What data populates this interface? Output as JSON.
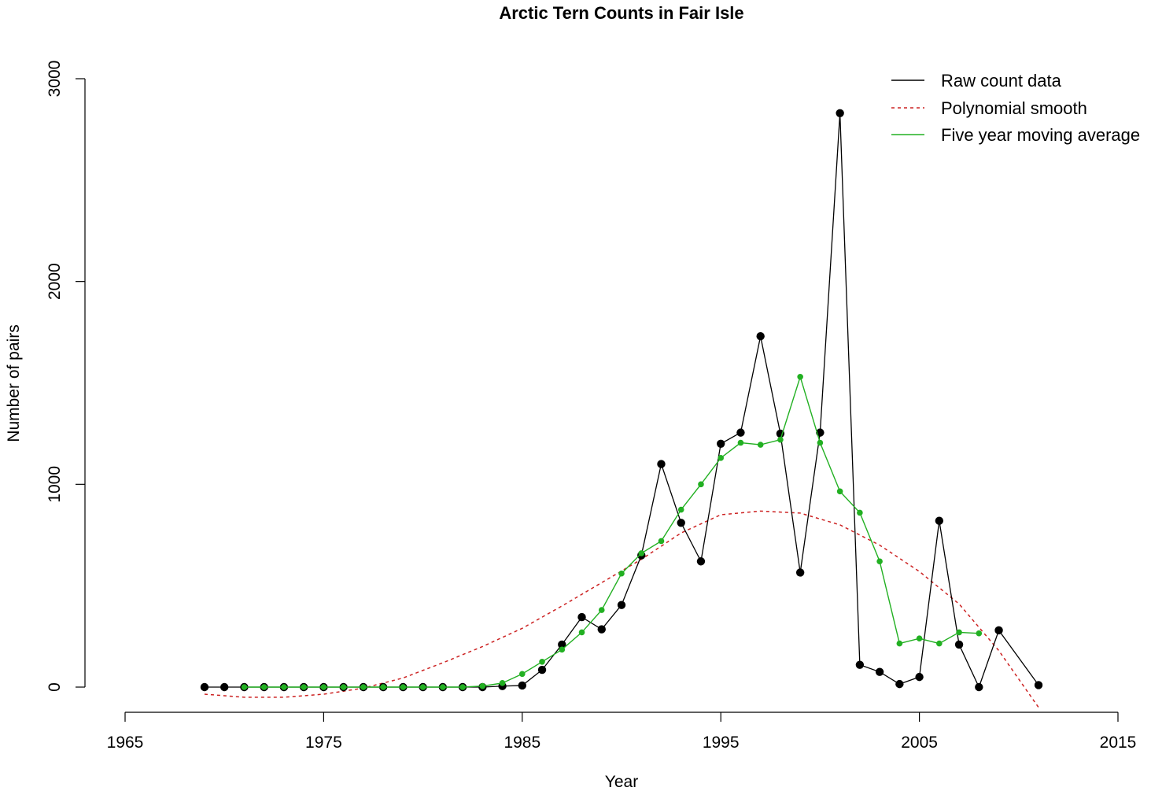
{
  "chart_data": {
    "type": "line",
    "title": "Arctic Tern Counts in Fair Isle",
    "xlabel": "Year",
    "ylabel": "Number of pairs",
    "xlim": [
      1965,
      2015
    ],
    "ylim": [
      0,
      3000
    ],
    "x_ticks": [
      1965,
      1975,
      1985,
      1995,
      2005,
      2015
    ],
    "y_ticks": [
      0,
      1000,
      2000,
      3000
    ],
    "grid": false,
    "legend_position": "top-right",
    "series": [
      {
        "name": "Raw count data",
        "color": "#000000",
        "line_style": "solid",
        "marker": "filled-circle",
        "x": [
          1969,
          1970,
          1971,
          1972,
          1973,
          1974,
          1975,
          1976,
          1977,
          1978,
          1979,
          1980,
          1981,
          1982,
          1983,
          1984,
          1985,
          1986,
          1987,
          1988,
          1989,
          1990,
          1991,
          1992,
          1993,
          1994,
          1995,
          1996,
          1997,
          1998,
          1999,
          2000,
          2001,
          2002,
          2003,
          2004,
          2005,
          2006,
          2007,
          2008,
          2009,
          2011
        ],
        "values": [
          0,
          0,
          0,
          0,
          0,
          0,
          0,
          0,
          0,
          0,
          0,
          0,
          0,
          0,
          0,
          5,
          8,
          85,
          210,
          345,
          285,
          405,
          650,
          1100,
          810,
          620,
          1200,
          1255,
          1730,
          1250,
          565,
          1255,
          2830,
          110,
          75,
          15,
          50,
          820,
          210,
          0,
          280,
          10
        ]
      },
      {
        "name": "Polynomial smooth",
        "color": "#cc2222",
        "line_style": "dashed",
        "x": [
          1969,
          1971,
          1973,
          1975,
          1977,
          1979,
          1981,
          1983,
          1985,
          1987,
          1989,
          1991,
          1993,
          1995,
          1997,
          1999,
          2001,
          2003,
          2005,
          2007,
          2009,
          2011
        ],
        "values": [
          -35,
          -50,
          -50,
          -35,
          -5,
          45,
          120,
          200,
          290,
          400,
          515,
          630,
          760,
          850,
          868,
          858,
          800,
          700,
          570,
          410,
          180,
          -100
        ]
      },
      {
        "name": "Five year moving average",
        "color": "#22b022",
        "line_style": "solid",
        "marker": "small-circle",
        "x": [
          1971,
          1972,
          1973,
          1974,
          1975,
          1976,
          1977,
          1978,
          1979,
          1980,
          1981,
          1982,
          1983,
          1984,
          1985,
          1986,
          1987,
          1988,
          1989,
          1990,
          1991,
          1992,
          1993,
          1994,
          1995,
          1996,
          1997,
          1998,
          1999,
          2000,
          2001,
          2002,
          2003,
          2004,
          2005,
          2006,
          2007,
          2008
        ],
        "values": [
          0,
          0,
          0,
          0,
          0,
          0,
          0,
          0,
          0,
          0,
          0,
          0,
          5,
          20,
          65,
          125,
          185,
          270,
          380,
          560,
          660,
          720,
          875,
          1000,
          1130,
          1205,
          1195,
          1220,
          1530,
          1205,
          965,
          860,
          620,
          215,
          240,
          215,
          270,
          265
        ]
      }
    ]
  }
}
